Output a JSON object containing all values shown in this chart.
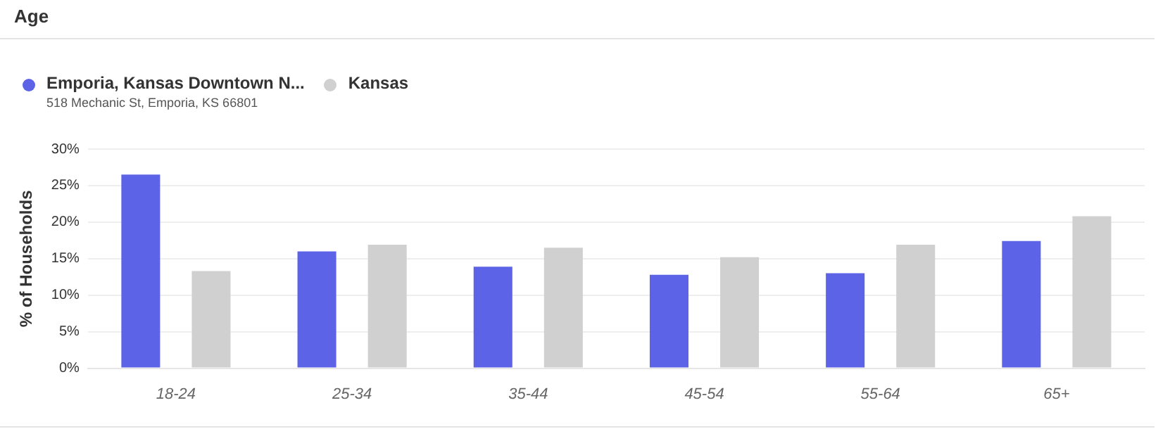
{
  "chart_data": {
    "type": "bar",
    "title": "Age",
    "ylabel": "% of Households",
    "categories": [
      "18-24",
      "25-34",
      "35-44",
      "45-54",
      "55-64",
      "65+"
    ],
    "series": [
      {
        "name": "Emporia, Kansas Downtown N...",
        "color": "#5c63e6",
        "values": [
          26.5,
          16.0,
          13.9,
          12.8,
          13.0,
          17.4
        ]
      },
      {
        "name": "Kansas",
        "color": "#d0d0d0",
        "values": [
          13.3,
          16.9,
          16.5,
          15.2,
          16.9,
          20.8
        ]
      }
    ],
    "annotations": [
      "518 Mechanic St, Emporia, KS 66801"
    ],
    "ylim": [
      0,
      30
    ],
    "yticks": [
      {
        "value": 0,
        "label": "0%"
      },
      {
        "value": 5,
        "label": "5%"
      },
      {
        "value": 10,
        "label": "10%"
      },
      {
        "value": 15,
        "label": "15%"
      },
      {
        "value": 20,
        "label": "20%"
      },
      {
        "value": 25,
        "label": "25%"
      },
      {
        "value": 30,
        "label": "30%"
      }
    ],
    "grid": "y",
    "legend": "top left"
  }
}
